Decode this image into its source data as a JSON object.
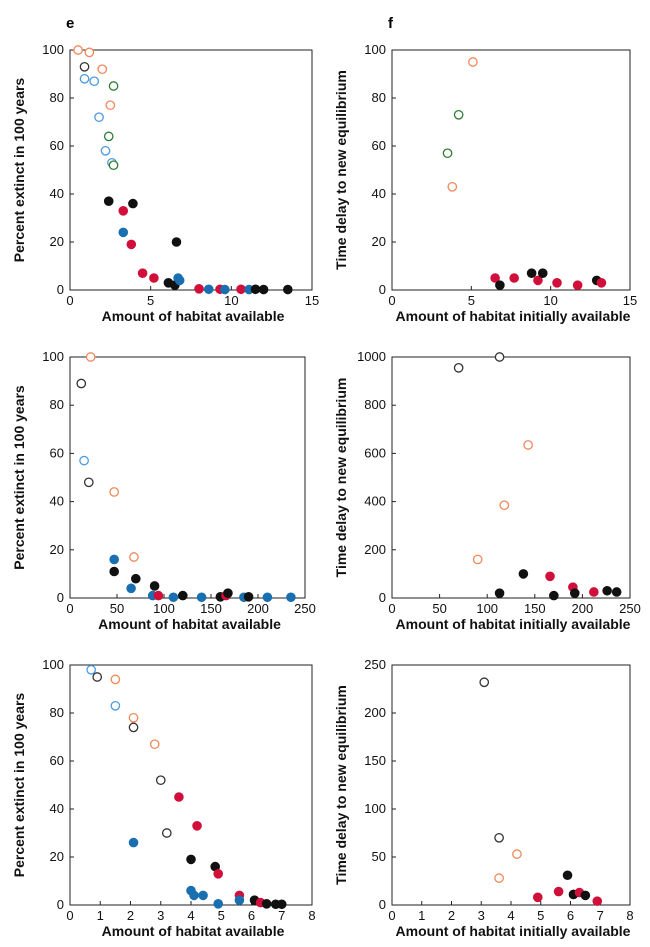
{
  "figure": {
    "panel_labels": [
      "e",
      "f"
    ]
  },
  "colors": {
    "black": "#111111",
    "red": "#d0103a",
    "blue": "#1a6fb0",
    "orange": "#f0885a",
    "green": "#2e7d32",
    "lightblue": "#4a9be0",
    "darkgray": "#333333"
  },
  "chart_data": [
    {
      "id": "e1",
      "type": "scatter",
      "xlabel": "Amount of habitat available",
      "ylabel": "Percent extinct in 100 years",
      "xlim": [
        0,
        15
      ],
      "ylim": [
        0,
        100
      ],
      "xticks": [
        0,
        5,
        10,
        15
      ],
      "yticks": [
        0,
        20,
        40,
        60,
        80,
        100
      ],
      "grid": false,
      "points": [
        {
          "x": 0.5,
          "y": 100,
          "style": "open",
          "color": "orange"
        },
        {
          "x": 1.2,
          "y": 99,
          "style": "open",
          "color": "orange"
        },
        {
          "x": 0.9,
          "y": 93,
          "style": "open",
          "color": "darkgray"
        },
        {
          "x": 0.9,
          "y": 88,
          "style": "open",
          "color": "lightblue"
        },
        {
          "x": 1.5,
          "y": 87,
          "style": "open",
          "color": "lightblue"
        },
        {
          "x": 2.0,
          "y": 92,
          "style": "open",
          "color": "orange"
        },
        {
          "x": 2.7,
          "y": 85,
          "style": "open",
          "color": "green"
        },
        {
          "x": 2.5,
          "y": 77,
          "style": "open",
          "color": "orange"
        },
        {
          "x": 1.8,
          "y": 72,
          "style": "open",
          "color": "lightblue"
        },
        {
          "x": 2.4,
          "y": 64,
          "style": "open",
          "color": "green"
        },
        {
          "x": 2.2,
          "y": 58,
          "style": "open",
          "color": "lightblue"
        },
        {
          "x": 2.6,
          "y": 53,
          "style": "open",
          "color": "lightblue"
        },
        {
          "x": 2.7,
          "y": 52,
          "style": "open",
          "color": "green"
        },
        {
          "x": 2.4,
          "y": 37,
          "style": "filled",
          "color": "black"
        },
        {
          "x": 3.9,
          "y": 36,
          "style": "filled",
          "color": "black"
        },
        {
          "x": 3.3,
          "y": 33,
          "style": "filled",
          "color": "red"
        },
        {
          "x": 3.3,
          "y": 24,
          "style": "filled",
          "color": "blue"
        },
        {
          "x": 3.8,
          "y": 19,
          "style": "filled",
          "color": "red"
        },
        {
          "x": 6.6,
          "y": 20,
          "style": "filled",
          "color": "black"
        },
        {
          "x": 4.5,
          "y": 7,
          "style": "filled",
          "color": "red"
        },
        {
          "x": 5.2,
          "y": 5,
          "style": "filled",
          "color": "red"
        },
        {
          "x": 6.1,
          "y": 3,
          "style": "filled",
          "color": "black"
        },
        {
          "x": 6.5,
          "y": 2,
          "style": "filled",
          "color": "black"
        },
        {
          "x": 6.8,
          "y": 4,
          "style": "filled",
          "color": "blue"
        },
        {
          "x": 6.7,
          "y": 5,
          "style": "filled",
          "color": "blue"
        },
        {
          "x": 8.0,
          "y": 0.5,
          "style": "filled",
          "color": "red"
        },
        {
          "x": 8.6,
          "y": 0.3,
          "style": "filled",
          "color": "blue"
        },
        {
          "x": 9.3,
          "y": 0.3,
          "style": "filled",
          "color": "red"
        },
        {
          "x": 9.6,
          "y": 0.2,
          "style": "filled",
          "color": "blue"
        },
        {
          "x": 10.6,
          "y": 0.3,
          "style": "filled",
          "color": "red"
        },
        {
          "x": 11.1,
          "y": 0.2,
          "style": "filled",
          "color": "blue"
        },
        {
          "x": 11.5,
          "y": 0.3,
          "style": "filled",
          "color": "black"
        },
        {
          "x": 12.0,
          "y": 0.2,
          "style": "filled",
          "color": "black"
        },
        {
          "x": 13.5,
          "y": 0.2,
          "style": "filled",
          "color": "black"
        }
      ]
    },
    {
      "id": "f1",
      "type": "scatter",
      "xlabel": "Amount of habitat initially available",
      "ylabel": "Time delay to new equilibrium",
      "xlim": [
        0,
        15
      ],
      "ylim": [
        0,
        100
      ],
      "xticks": [
        0,
        5,
        10,
        15
      ],
      "yticks": [
        0,
        20,
        40,
        60,
        80,
        100
      ],
      "grid": false,
      "points": [
        {
          "x": 5.1,
          "y": 95,
          "style": "open",
          "color": "orange"
        },
        {
          "x": 4.2,
          "y": 73,
          "style": "open",
          "color": "green"
        },
        {
          "x": 3.5,
          "y": 57,
          "style": "open",
          "color": "green"
        },
        {
          "x": 3.8,
          "y": 43,
          "style": "open",
          "color": "orange"
        },
        {
          "x": 6.5,
          "y": 5,
          "style": "filled",
          "color": "red"
        },
        {
          "x": 6.8,
          "y": 2,
          "style": "filled",
          "color": "black"
        },
        {
          "x": 7.7,
          "y": 5,
          "style": "filled",
          "color": "red"
        },
        {
          "x": 8.8,
          "y": 7,
          "style": "filled",
          "color": "black"
        },
        {
          "x": 9.2,
          "y": 4,
          "style": "filled",
          "color": "red"
        },
        {
          "x": 9.5,
          "y": 7,
          "style": "filled",
          "color": "black"
        },
        {
          "x": 10.4,
          "y": 3,
          "style": "filled",
          "color": "red"
        },
        {
          "x": 11.7,
          "y": 2,
          "style": "filled",
          "color": "red"
        },
        {
          "x": 12.9,
          "y": 4,
          "style": "filled",
          "color": "black"
        },
        {
          "x": 13.2,
          "y": 3,
          "style": "filled",
          "color": "red"
        }
      ]
    },
    {
      "id": "e2",
      "type": "scatter",
      "xlabel": "Amount of habitat available",
      "ylabel": "Percent extinct in 100 years",
      "xlim": [
        0,
        250
      ],
      "ylim": [
        0,
        100
      ],
      "xticks": [
        0,
        50,
        100,
        150,
        200,
        250
      ],
      "yticks": [
        0,
        20,
        40,
        60,
        80,
        100
      ],
      "grid": false,
      "points": [
        {
          "x": 22,
          "y": 100,
          "style": "open",
          "color": "orange"
        },
        {
          "x": 12,
          "y": 89,
          "style": "open",
          "color": "darkgray"
        },
        {
          "x": 15,
          "y": 57,
          "style": "open",
          "color": "lightblue"
        },
        {
          "x": 20,
          "y": 48,
          "style": "open",
          "color": "darkgray"
        },
        {
          "x": 47,
          "y": 44,
          "style": "open",
          "color": "orange"
        },
        {
          "x": 68,
          "y": 17,
          "style": "open",
          "color": "orange"
        },
        {
          "x": 47,
          "y": 16,
          "style": "filled",
          "color": "blue"
        },
        {
          "x": 47,
          "y": 11,
          "style": "filled",
          "color": "black"
        },
        {
          "x": 70,
          "y": 8,
          "style": "filled",
          "color": "black"
        },
        {
          "x": 65,
          "y": 4,
          "style": "filled",
          "color": "blue"
        },
        {
          "x": 90,
          "y": 5,
          "style": "filled",
          "color": "black"
        },
        {
          "x": 88,
          "y": 1,
          "style": "filled",
          "color": "blue"
        },
        {
          "x": 94,
          "y": 1,
          "style": "filled",
          "color": "red"
        },
        {
          "x": 110,
          "y": 0.3,
          "style": "filled",
          "color": "blue"
        },
        {
          "x": 120,
          "y": 1,
          "style": "filled",
          "color": "black"
        },
        {
          "x": 140,
          "y": 0.3,
          "style": "filled",
          "color": "blue"
        },
        {
          "x": 160,
          "y": 0.5,
          "style": "filled",
          "color": "black"
        },
        {
          "x": 166,
          "y": 1,
          "style": "filled",
          "color": "red"
        },
        {
          "x": 168,
          "y": 2,
          "style": "filled",
          "color": "black"
        },
        {
          "x": 185,
          "y": 0.3,
          "style": "filled",
          "color": "blue"
        },
        {
          "x": 190,
          "y": 0.5,
          "style": "filled",
          "color": "black"
        },
        {
          "x": 210,
          "y": 0.3,
          "style": "filled",
          "color": "blue"
        },
        {
          "x": 235,
          "y": 0.3,
          "style": "filled",
          "color": "blue"
        }
      ]
    },
    {
      "id": "f2",
      "type": "scatter",
      "xlabel": "Amount of habitat initially available",
      "ylabel": "Time delay to new equilibrium",
      "xlim": [
        0,
        250
      ],
      "ylim": [
        0,
        1000
      ],
      "xticks": [
        0,
        50,
        100,
        150,
        200,
        250
      ],
      "yticks": [
        0,
        200,
        400,
        600,
        800,
        1000
      ],
      "grid": false,
      "points": [
        {
          "x": 70,
          "y": 955,
          "style": "open",
          "color": "darkgray"
        },
        {
          "x": 113,
          "y": 1000,
          "style": "open",
          "color": "darkgray"
        },
        {
          "x": 143,
          "y": 635,
          "style": "open",
          "color": "orange"
        },
        {
          "x": 118,
          "y": 385,
          "style": "open",
          "color": "orange"
        },
        {
          "x": 90,
          "y": 160,
          "style": "open",
          "color": "orange"
        },
        {
          "x": 113,
          "y": 20,
          "style": "filled",
          "color": "black"
        },
        {
          "x": 138,
          "y": 100,
          "style": "filled",
          "color": "black"
        },
        {
          "x": 166,
          "y": 90,
          "style": "filled",
          "color": "red"
        },
        {
          "x": 170,
          "y": 10,
          "style": "filled",
          "color": "black"
        },
        {
          "x": 190,
          "y": 45,
          "style": "filled",
          "color": "red"
        },
        {
          "x": 192,
          "y": 20,
          "style": "filled",
          "color": "black"
        },
        {
          "x": 212,
          "y": 25,
          "style": "filled",
          "color": "red"
        },
        {
          "x": 226,
          "y": 30,
          "style": "filled",
          "color": "black"
        },
        {
          "x": 236,
          "y": 25,
          "style": "filled",
          "color": "black"
        }
      ]
    },
    {
      "id": "e3",
      "type": "scatter",
      "xlabel": "Amount of habitat available",
      "ylabel": "Percent extinct in 100 years",
      "xlim": [
        0,
        8
      ],
      "ylim": [
        0,
        100
      ],
      "xticks": [
        0,
        1,
        2,
        3,
        4,
        5,
        6,
        7,
        8
      ],
      "yticks": [
        0,
        20,
        40,
        60,
        80,
        100
      ],
      "grid": false,
      "points": [
        {
          "x": 0.7,
          "y": 98,
          "style": "open",
          "color": "lightblue"
        },
        {
          "x": 0.9,
          "y": 95,
          "style": "open",
          "color": "darkgray"
        },
        {
          "x": 1.5,
          "y": 94,
          "style": "open",
          "color": "orange"
        },
        {
          "x": 1.5,
          "y": 83,
          "style": "open",
          "color": "lightblue"
        },
        {
          "x": 2.1,
          "y": 78,
          "style": "open",
          "color": "orange"
        },
        {
          "x": 2.1,
          "y": 74,
          "style": "open",
          "color": "darkgray"
        },
        {
          "x": 2.8,
          "y": 67,
          "style": "open",
          "color": "orange"
        },
        {
          "x": 3.0,
          "y": 52,
          "style": "open",
          "color": "darkgray"
        },
        {
          "x": 3.2,
          "y": 30,
          "style": "open",
          "color": "darkgray"
        },
        {
          "x": 3.6,
          "y": 45,
          "style": "filled",
          "color": "red"
        },
        {
          "x": 4.2,
          "y": 33,
          "style": "filled",
          "color": "red"
        },
        {
          "x": 2.1,
          "y": 26,
          "style": "filled",
          "color": "blue"
        },
        {
          "x": 4.0,
          "y": 19,
          "style": "filled",
          "color": "black"
        },
        {
          "x": 4.8,
          "y": 16,
          "style": "filled",
          "color": "black"
        },
        {
          "x": 4.9,
          "y": 13,
          "style": "filled",
          "color": "red"
        },
        {
          "x": 4.0,
          "y": 6,
          "style": "filled",
          "color": "blue"
        },
        {
          "x": 4.1,
          "y": 4,
          "style": "filled",
          "color": "blue"
        },
        {
          "x": 4.4,
          "y": 4,
          "style": "filled",
          "color": "blue"
        },
        {
          "x": 4.9,
          "y": 0.5,
          "style": "filled",
          "color": "blue"
        },
        {
          "x": 5.6,
          "y": 4,
          "style": "filled",
          "color": "red"
        },
        {
          "x": 5.6,
          "y": 2,
          "style": "filled",
          "color": "blue"
        },
        {
          "x": 6.1,
          "y": 2,
          "style": "filled",
          "color": "black"
        },
        {
          "x": 6.3,
          "y": 1,
          "style": "filled",
          "color": "red"
        },
        {
          "x": 6.5,
          "y": 0.5,
          "style": "filled",
          "color": "black"
        },
        {
          "x": 6.8,
          "y": 0.3,
          "style": "filled",
          "color": "black"
        },
        {
          "x": 7.0,
          "y": 0.3,
          "style": "filled",
          "color": "black"
        }
      ]
    },
    {
      "id": "f3",
      "type": "scatter",
      "xlabel": "Amount of habitat initially available",
      "ylabel": "Time delay to new equilibrium",
      "xlim": [
        0,
        8
      ],
      "ylim": [
        0,
        250
      ],
      "xticks": [
        0,
        1,
        2,
        3,
        4,
        5,
        6,
        7,
        8
      ],
      "yticks": [
        0,
        50,
        100,
        150,
        200,
        250
      ],
      "grid": false,
      "points": [
        {
          "x": 3.1,
          "y": 232,
          "style": "open",
          "color": "darkgray"
        },
        {
          "x": 3.6,
          "y": 70,
          "style": "open",
          "color": "darkgray"
        },
        {
          "x": 4.2,
          "y": 53,
          "style": "open",
          "color": "orange"
        },
        {
          "x": 3.6,
          "y": 28,
          "style": "open",
          "color": "orange"
        },
        {
          "x": 4.9,
          "y": 8,
          "style": "filled",
          "color": "red"
        },
        {
          "x": 5.6,
          "y": 14,
          "style": "filled",
          "color": "red"
        },
        {
          "x": 5.9,
          "y": 31,
          "style": "filled",
          "color": "black"
        },
        {
          "x": 6.1,
          "y": 11,
          "style": "filled",
          "color": "black"
        },
        {
          "x": 6.3,
          "y": 13,
          "style": "filled",
          "color": "red"
        },
        {
          "x": 6.5,
          "y": 10,
          "style": "filled",
          "color": "black"
        },
        {
          "x": 6.9,
          "y": 4,
          "style": "filled",
          "color": "red"
        }
      ]
    }
  ]
}
